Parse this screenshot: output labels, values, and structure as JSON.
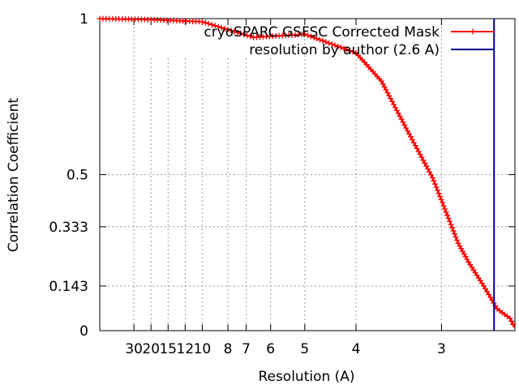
{
  "chart_data": {
    "type": "line",
    "xlabel": "Resolution (A)",
    "ylabel": "Correlation Coefficient",
    "x_scale": "reciprocal",
    "x_domain_inv_angstrom": [
      0.0,
      0.405
    ],
    "xlim_resolution": [
      "∞",
      "2.47"
    ],
    "ylim": [
      0,
      1
    ],
    "grid": true,
    "legend_position": "top-right",
    "x_ticks": [
      "30",
      "20",
      "15",
      "12",
      "10",
      "8",
      "7",
      "6",
      "5",
      "4",
      "3"
    ],
    "y_ticks": [
      {
        "label": "1",
        "value": 1.0
      },
      {
        "label": "0.5",
        "value": 0.5
      },
      {
        "label": "0.333",
        "value": 0.333
      },
      {
        "label": "0.143",
        "value": 0.143
      },
      {
        "label": "0",
        "value": 0.0
      }
    ],
    "series": [
      {
        "name": "cryoSPARC GSFSC Corrected Mask",
        "color": "#ff0000",
        "marker": "plus",
        "x_resolution": [
          "∞",
          "20.0",
          "10.0",
          "6.67",
          "5.0",
          "4.0",
          "3.64",
          "3.33",
          "3.08",
          "2.96",
          "2.86",
          "2.78",
          "2.67",
          "2.58",
          "2.50",
          "2.47"
        ],
        "y": [
          1.0,
          0.997,
          0.99,
          0.94,
          0.95,
          0.89,
          0.8,
          0.64,
          0.49,
          0.38,
          0.28,
          0.22,
          0.143,
          0.07,
          0.04,
          0.01
        ]
      },
      {
        "name": "resolution by author (2.6 A)",
        "color": "#00008b",
        "type": "vertical-line",
        "x_resolution": "2.6"
      }
    ]
  }
}
